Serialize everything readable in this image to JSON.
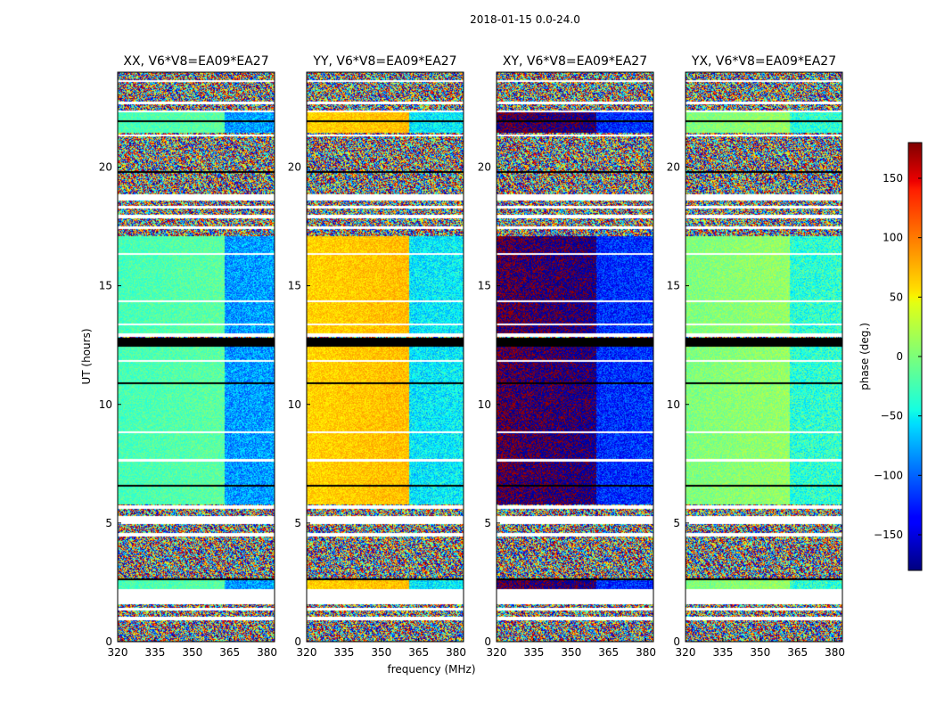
{
  "chart_data": {
    "type": "heatmap",
    "suptitle": "2018-01-15 0.0-24.0",
    "xlabel": "frequency (MHz)",
    "ylabel": "UT (hours)",
    "xlim": [
      320,
      383
    ],
    "ylim": [
      0,
      24
    ],
    "xticks": [
      320,
      335,
      350,
      365,
      380
    ],
    "yticks": [
      0,
      5,
      10,
      15,
      20
    ],
    "panels": [
      {
        "title": "XX, V6*V8=EA09*EA27",
        "polarization": "XX",
        "coherent_phase_deg": -20,
        "flip_phase_deg": -90,
        "flip_freq_mhz": 363
      },
      {
        "title": "YY, V6*V8=EA09*EA27",
        "polarization": "YY",
        "coherent_phase_deg": 60,
        "flip_phase_deg": -60,
        "flip_freq_mhz": 361
      },
      {
        "title": "XY, V6*V8=EA09*EA27",
        "polarization": "XY",
        "coherent_phase_deg": 180,
        "flip_phase_deg": -130,
        "flip_freq_mhz": 360
      },
      {
        "title": "YX, V6*V8=EA09*EA27",
        "polarization": "YX",
        "coherent_phase_deg": 0,
        "flip_phase_deg": -40,
        "flip_freq_mhz": 362
      }
    ],
    "colorbar": {
      "label": "phase (deg.)",
      "colormap": "jet",
      "vmin": -180,
      "vmax": 180,
      "ticks": [
        -150,
        -100,
        -50,
        0,
        50,
        100,
        150
      ],
      "tick_labels": [
        "−150",
        "−100",
        "−50",
        "0",
        "50",
        "100",
        "150"
      ]
    },
    "flagged_hours": [
      [
        0.9,
        1.05
      ],
      [
        1.3,
        1.42
      ],
      [
        1.58,
        2.2
      ],
      [
        4.45,
        4.6
      ],
      [
        4.95,
        5.3
      ],
      [
        5.58,
        5.75
      ],
      [
        7.6,
        7.7
      ],
      [
        8.8,
        8.88
      ],
      [
        11.8,
        11.88
      ],
      [
        12.85,
        12.98
      ],
      [
        13.35,
        13.42
      ],
      [
        14.3,
        14.37
      ],
      [
        16.3,
        16.37
      ],
      [
        17.4,
        17.5
      ],
      [
        17.85,
        18.0
      ],
      [
        18.25,
        18.35
      ],
      [
        18.6,
        18.85
      ],
      [
        21.3,
        21.38
      ],
      [
        22.3,
        22.4
      ],
      [
        22.65,
        22.75
      ],
      [
        23.6,
        23.68
      ]
    ],
    "no_data_hours": [
      [
        12.45,
        12.82
      ],
      [
        2.6,
        2.68
      ],
      [
        6.55,
        6.62
      ],
      [
        10.85,
        10.92
      ],
      [
        19.75,
        19.82
      ],
      [
        21.9,
        21.96
      ]
    ],
    "coherent_hours": [
      [
        2.2,
        2.6
      ],
      [
        5.8,
        12.45
      ],
      [
        12.98,
        17.1
      ],
      [
        21.45,
        22.3
      ]
    ]
  }
}
